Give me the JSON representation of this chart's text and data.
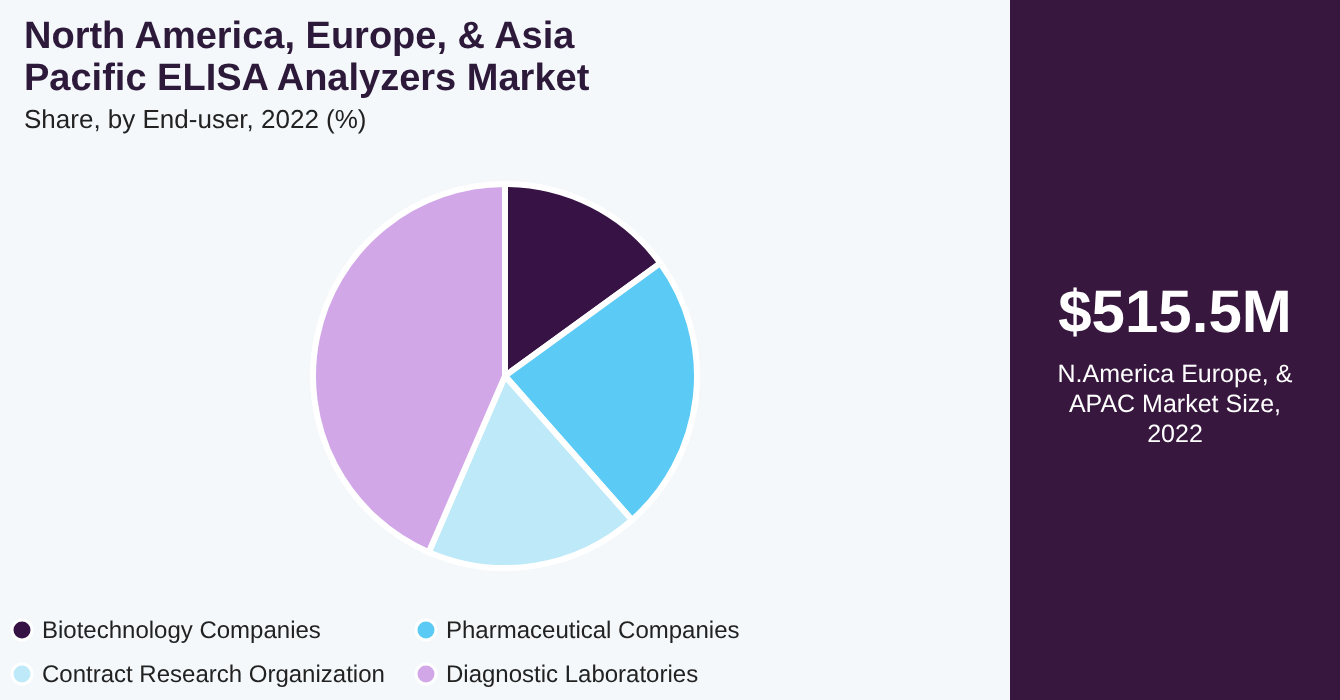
{
  "chart_data": {
    "type": "pie",
    "title": "North America, Europe, & Asia Pacific ELISA Analyzers Market",
    "subtitle": "Share, by End-user, 2022 (%)",
    "categories": [
      "Biotechnology Companies",
      "Pharmaceutical Companies",
      "Contract Research Organization",
      "Diagnostic Laboratories"
    ],
    "values": [
      15,
      23.5,
      18,
      43.5
    ],
    "colors": [
      "#361245",
      "#5bcaf5",
      "#bde9f8",
      "#d2a7e8"
    ],
    "legend": "bottom",
    "annotations": [
      "$515.5M",
      "N.America Europe, & APAC Market Size, 2022"
    ]
  }
}
